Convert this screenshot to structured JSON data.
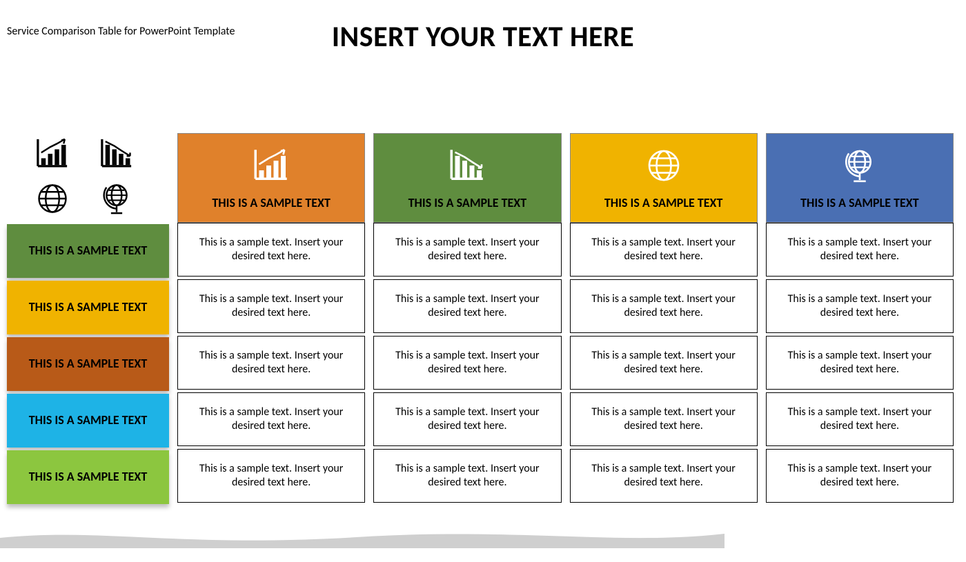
{
  "meta_label": "Service Comparison Table for PowerPoint Template",
  "title": "INSERT YOUR TEXT HERE",
  "colors": {
    "col1": "#e0812b",
    "col2": "#5f8d3f",
    "col3": "#f0b300",
    "col4": "#4a6fb3",
    "row1": "#5f8d3f",
    "row2": "#f0b300",
    "row3": "#b85a18",
    "row4": "#1eb3e6",
    "row5": "#8cc63f",
    "icon_white": "#ffffff",
    "icon_black": "#000000",
    "wave": "#cfcfcf",
    "cell_border": "#000000",
    "background": "#ffffff"
  },
  "icons": {
    "cluster": [
      "bar-up",
      "bar-down",
      "globe",
      "globe-stand"
    ],
    "columns": [
      "bar-up",
      "bar-down",
      "globe",
      "globe-stand"
    ]
  },
  "columns": [
    {
      "title": "THIS IS A SAMPLE TEXT"
    },
    {
      "title": "THIS IS A SAMPLE TEXT"
    },
    {
      "title": "THIS IS A SAMPLE TEXT"
    },
    {
      "title": "THIS IS A SAMPLE TEXT"
    }
  ],
  "rows": [
    {
      "label": "THIS IS A SAMPLE TEXT"
    },
    {
      "label": "THIS IS A SAMPLE TEXT"
    },
    {
      "label": "THIS IS A SAMPLE TEXT"
    },
    {
      "label": "THIS IS A SAMPLE TEXT"
    },
    {
      "label": "THIS IS A SAMPLE TEXT"
    }
  ],
  "cell_text": "This is a sample text. Insert your desired text here.",
  "typography": {
    "title_fontsize": 42,
    "header_fontsize": 18,
    "row_label_fontsize": 18,
    "cell_fontsize": 16,
    "meta_fontsize": 16
  }
}
